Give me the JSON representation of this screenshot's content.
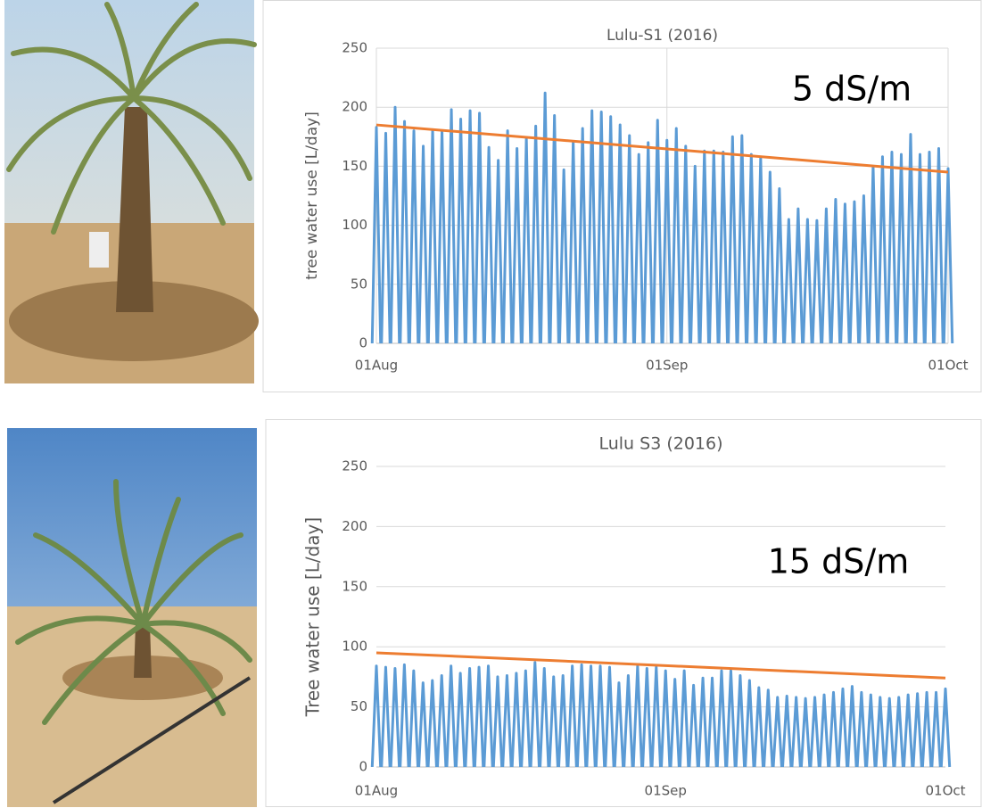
{
  "chart_data": [
    {
      "type": "spike",
      "title": "Lulu-S1 (2016)",
      "y_label": "tree water use [L/day]",
      "annotation": "5 dS/m",
      "categories": [
        "01Aug",
        null,
        null,
        null,
        null,
        null,
        null,
        null,
        null,
        null,
        null,
        null,
        null,
        null,
        null,
        null,
        null,
        null,
        null,
        null,
        null,
        null,
        null,
        null,
        null,
        null,
        null,
        null,
        null,
        null,
        null,
        "01Sep",
        null,
        null,
        null,
        null,
        null,
        null,
        null,
        null,
        null,
        null,
        null,
        null,
        null,
        null,
        null,
        null,
        null,
        null,
        null,
        null,
        null,
        null,
        null,
        null,
        null,
        null,
        null,
        null,
        null,
        "01Oct"
      ],
      "values": [
        183,
        178,
        200,
        188,
        180,
        167,
        181,
        180,
        198,
        190,
        197,
        195,
        166,
        155,
        180,
        165,
        174,
        184,
        212,
        193,
        147,
        171,
        182,
        197,
        196,
        192,
        185,
        176,
        160,
        170,
        189,
        172,
        182,
        167,
        150,
        163,
        163,
        162,
        175,
        176,
        160,
        157,
        145,
        131,
        105,
        114,
        105,
        104,
        114,
        122,
        118,
        120,
        125,
        150,
        158,
        162,
        160,
        177,
        160,
        162,
        165,
        148
      ],
      "color": "#5b9bd5",
      "trend": {
        "color": "#ed7d31",
        "values": [
          185,
          145
        ]
      },
      "ylim": [
        0,
        250
      ],
      "yticks": [
        0,
        50,
        100,
        150,
        200,
        250
      ],
      "grid": true,
      "xgrid": true
    },
    {
      "type": "spike",
      "title": "Lulu S3 (2016)",
      "y_label": "Tree water use  [L/day]",
      "annotation": "15 dS/m",
      "categories": [
        "01Aug",
        null,
        null,
        null,
        null,
        null,
        null,
        null,
        null,
        null,
        null,
        null,
        null,
        null,
        null,
        null,
        null,
        null,
        null,
        null,
        null,
        null,
        null,
        null,
        null,
        null,
        null,
        null,
        null,
        null,
        null,
        "01Sep",
        null,
        null,
        null,
        null,
        null,
        null,
        null,
        null,
        null,
        null,
        null,
        null,
        null,
        null,
        null,
        null,
        null,
        null,
        null,
        null,
        null,
        null,
        null,
        null,
        null,
        null,
        null,
        null,
        null,
        "01Oct"
      ],
      "values": [
        84,
        83,
        82,
        85,
        80,
        70,
        72,
        76,
        84,
        78,
        82,
        83,
        84,
        75,
        76,
        78,
        80,
        87,
        82,
        75,
        76,
        84,
        85,
        84,
        84,
        83,
        70,
        76,
        84,
        82,
        83,
        80,
        73,
        80,
        68,
        74,
        74,
        80,
        80,
        76,
        72,
        66,
        64,
        58,
        59,
        58,
        57,
        58,
        60,
        62,
        65,
        67,
        62,
        60,
        58,
        57,
        58,
        60,
        61,
        62,
        62,
        65
      ],
      "color": "#5b9bd5",
      "trend": {
        "color": "#ed7d31",
        "values": [
          95,
          74
        ]
      },
      "ylim": [
        0,
        250
      ],
      "yticks": [
        0,
        50,
        100,
        150,
        200,
        250
      ],
      "grid": true,
      "xgrid": false
    }
  ]
}
